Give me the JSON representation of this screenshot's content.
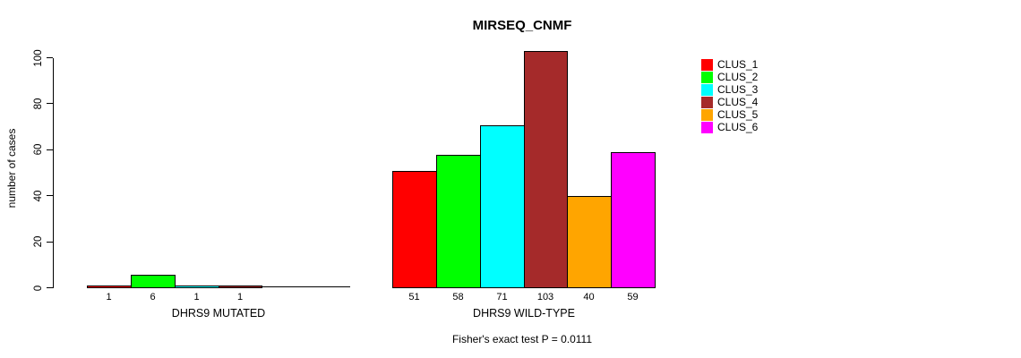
{
  "chart_data": {
    "type": "bar",
    "title": "MIRSEQ_CNMF",
    "ylabel": "number of cases",
    "xlabel": "",
    "ylim": [
      0,
      100
    ],
    "yticks": [
      0,
      20,
      40,
      60,
      80,
      100
    ],
    "grid": false,
    "legend_position": "right",
    "categories": [
      "DHRS9 MUTATED",
      "DHRS9 WILD-TYPE"
    ],
    "series": [
      {
        "name": "CLUS_1",
        "color": "#FF0000",
        "values": [
          1,
          51
        ]
      },
      {
        "name": "CLUS_2",
        "color": "#00FF00",
        "values": [
          6,
          58
        ]
      },
      {
        "name": "CLUS_3",
        "color": "#00FFFF",
        "values": [
          1,
          71
        ]
      },
      {
        "name": "CLUS_4",
        "color": "#A52A2A",
        "values": [
          1,
          103
        ]
      },
      {
        "name": "CLUS_5",
        "color": "#FFA500",
        "values": [
          0,
          40
        ]
      },
      {
        "name": "CLUS_6",
        "color": "#FF00FF",
        "values": [
          0,
          59
        ]
      }
    ],
    "bar_value_labels": [
      [
        "1",
        "6",
        "1",
        "1",
        "",
        ""
      ],
      [
        "51",
        "58",
        "71",
        "103",
        "40",
        "59"
      ]
    ],
    "footnote": "Fisher's exact test P = 0.0111"
  }
}
